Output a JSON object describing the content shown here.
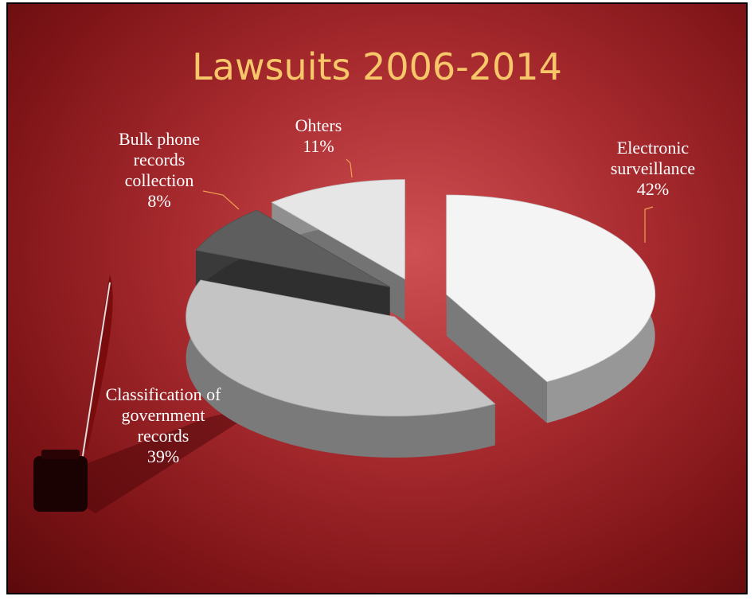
{
  "chart_data": {
    "type": "pie",
    "title": "Lawsuits 2006-2014",
    "categories": [
      "Electronic surveillance",
      "Classification of government records",
      "Bulk phone records collection",
      "Ohters"
    ],
    "values": [
      42,
      39,
      8,
      11
    ],
    "value_labels": [
      "42%",
      "39%",
      "8%",
      "11%"
    ],
    "colors": [
      "#f4f4f4",
      "#c4c4c4",
      "#5e5e5e",
      "#e6e6e6"
    ]
  }
}
